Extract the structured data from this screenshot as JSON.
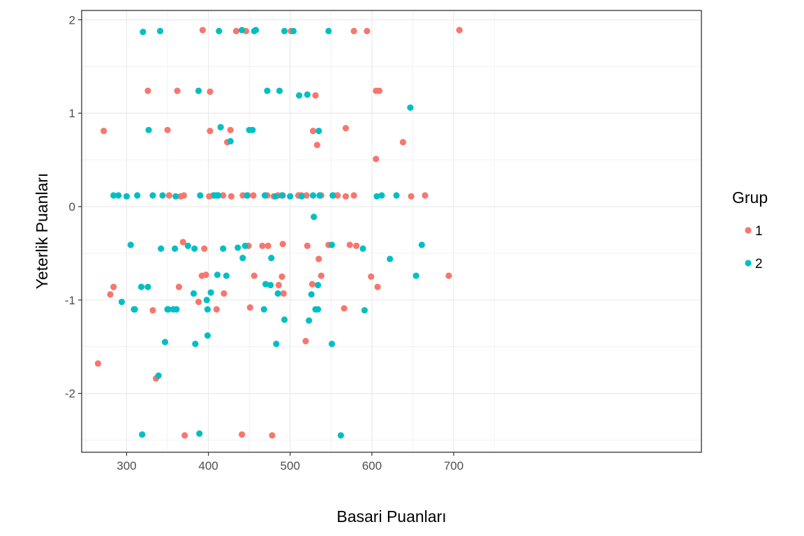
{
  "chart_data": {
    "type": "scatter",
    "title": "",
    "xlabel": "Basari Puanları",
    "ylabel": "Yeterlik Puanları",
    "xlim": [
      245,
      1003
    ],
    "ylim": [
      -2.63,
      2.1
    ],
    "xticks": [
      300,
      400,
      500,
      600,
      700
    ],
    "yticks": [
      -2,
      -1,
      0,
      1,
      2
    ],
    "xtick_labels": [
      "300",
      "400",
      "500",
      "600",
      "700"
    ],
    "ytick_labels": [
      "-2",
      "-1",
      "0",
      "1",
      "2"
    ],
    "grid": true,
    "legend": {
      "title": "Grup",
      "position": "right"
    },
    "series": [
      {
        "name": "1",
        "color": "#F8766D",
        "points": [
          [
            265,
            -1.68
          ],
          [
            272,
            0.81
          ],
          [
            280,
            -0.94
          ],
          [
            284,
            -0.86
          ],
          [
            326,
            1.24
          ],
          [
            332,
            -1.11
          ],
          [
            336,
            -1.84
          ],
          [
            350,
            0.82
          ],
          [
            352,
            0.12
          ],
          [
            362,
            1.24
          ],
          [
            364,
            -0.86
          ],
          [
            366,
            0.11
          ],
          [
            369,
            -0.38
          ],
          [
            371,
            -2.45
          ],
          [
            370,
            0.12
          ],
          [
            388,
            -1.02
          ],
          [
            392,
            -0.74
          ],
          [
            393,
            1.89
          ],
          [
            395,
            -0.45
          ],
          [
            397,
            -0.73
          ],
          [
            401,
            0.11
          ],
          [
            402,
            0.81
          ],
          [
            402,
            1.23
          ],
          [
            406,
            0.12
          ],
          [
            410,
            -1.1
          ],
          [
            418,
            0.12
          ],
          [
            419,
            -0.93
          ],
          [
            423,
            0.69
          ],
          [
            427,
            0.82
          ],
          [
            428,
            0.11
          ],
          [
            434,
            1.88
          ],
          [
            441,
            -2.44
          ],
          [
            442,
            0.12
          ],
          [
            446,
            1.88
          ],
          [
            448,
            0.12
          ],
          [
            449,
            -0.42
          ],
          [
            451,
            -1.08
          ],
          [
            455,
            0.12
          ],
          [
            456,
            -0.74
          ],
          [
            466,
            -0.42
          ],
          [
            472,
            0.12
          ],
          [
            473,
            -0.42
          ],
          [
            478,
            -2.45
          ],
          [
            480,
            0.11
          ],
          [
            485,
            0.12
          ],
          [
            486,
            -0.84
          ],
          [
            490,
            -0.75
          ],
          [
            491,
            0.12
          ],
          [
            491,
            -0.4
          ],
          [
            492,
            -0.93
          ],
          [
            501,
            1.88
          ],
          [
            510,
            0.12
          ],
          [
            512,
            0.12
          ],
          [
            514,
            0.12
          ],
          [
            519,
            -1.44
          ],
          [
            520,
            0.12
          ],
          [
            521,
            -0.42
          ],
          [
            527,
            -0.83
          ],
          [
            528,
            0.81
          ],
          [
            531,
            1.19
          ],
          [
            533,
            0.66
          ],
          [
            535,
            -0.56
          ],
          [
            538,
            0.12
          ],
          [
            538,
            -0.74
          ],
          [
            547,
            -0.41
          ],
          [
            553,
            0.12
          ],
          [
            558,
            0.12
          ],
          [
            566,
            -1.09
          ],
          [
            568,
            0.84
          ],
          [
            568,
            0.11
          ],
          [
            573,
            -0.41
          ],
          [
            578,
            1.88
          ],
          [
            578,
            0.12
          ],
          [
            581,
            -0.42
          ],
          [
            594,
            1.88
          ],
          [
            599,
            -0.75
          ],
          [
            605,
            0.51
          ],
          [
            605,
            1.24
          ],
          [
            607,
            -0.86
          ],
          [
            609,
            1.24
          ],
          [
            638,
            0.69
          ],
          [
            648,
            0.11
          ],
          [
            665,
            0.12
          ],
          [
            694,
            -0.74
          ],
          [
            707,
            1.89
          ]
        ]
      },
      {
        "name": "2",
        "color": "#00BFC4",
        "points": [
          [
            290,
            0.12
          ],
          [
            294,
            -1.02
          ],
          [
            300,
            0.11
          ],
          [
            305,
            -0.41
          ],
          [
            310,
            -1.1
          ],
          [
            313,
            0.12
          ],
          [
            318,
            -0.86
          ],
          [
            319,
            -2.44
          ],
          [
            320,
            1.87
          ],
          [
            326,
            -0.86
          ],
          [
            327,
            0.82
          ],
          [
            332,
            0.12
          ],
          [
            339,
            -1.81
          ],
          [
            341,
            1.88
          ],
          [
            342,
            -0.45
          ],
          [
            344,
            0.12
          ],
          [
            347,
            -1.45
          ],
          [
            350,
            -1.1
          ],
          [
            357,
            -1.1
          ],
          [
            359,
            -0.45
          ],
          [
            360,
            0.11
          ],
          [
            361,
            -1.1
          ],
          [
            375,
            -0.42
          ],
          [
            382,
            -0.93
          ],
          [
            383,
            -0.45
          ],
          [
            384,
            -1.47
          ],
          [
            388,
            1.24
          ],
          [
            389,
            -2.43
          ],
          [
            390,
            0.12
          ],
          [
            398,
            -1.0
          ],
          [
            399,
            -1.1
          ],
          [
            399,
            -1.38
          ],
          [
            403,
            -0.92
          ],
          [
            407,
            0.12
          ],
          [
            410,
            0.12
          ],
          [
            411,
            -0.73
          ],
          [
            412,
            0.12
          ],
          [
            413,
            1.88
          ],
          [
            415,
            0.85
          ],
          [
            418,
            -0.45
          ],
          [
            422,
            -0.74
          ],
          [
            427,
            0.7
          ],
          [
            436,
            -0.44
          ],
          [
            441,
            1.89
          ],
          [
            442,
            -0.55
          ],
          [
            445,
            -0.42
          ],
          [
            447,
            0.12
          ],
          [
            450,
            0.82
          ],
          [
            454,
            0.82
          ],
          [
            456,
            1.88
          ],
          [
            458,
            1.89
          ],
          [
            468,
            -1.1
          ],
          [
            469,
            0.12
          ],
          [
            470,
            -0.83
          ],
          [
            472,
            1.24
          ],
          [
            476,
            -0.84
          ],
          [
            477,
            -0.55
          ],
          [
            482,
            0.11
          ],
          [
            483,
            -1.47
          ],
          [
            485,
            -0.93
          ],
          [
            487,
            1.24
          ],
          [
            490,
            0.12
          ],
          [
            493,
            -1.21
          ],
          [
            493,
            1.88
          ],
          [
            500,
            0.11
          ],
          [
            504,
            1.88
          ],
          [
            511,
            1.19
          ],
          [
            514,
            0.11
          ],
          [
            521,
            1.2
          ],
          [
            523,
            -1.22
          ],
          [
            526,
            -0.94
          ],
          [
            528,
            0.12
          ],
          [
            529,
            -0.11
          ],
          [
            531,
            -1.1
          ],
          [
            534,
            -1.1
          ],
          [
            534,
            -0.84
          ],
          [
            535,
            0.81
          ],
          [
            536,
            0.12
          ],
          [
            547,
            1.88
          ],
          [
            551,
            -1.47
          ],
          [
            552,
            0.12
          ],
          [
            562,
            -2.45
          ],
          [
            589,
            -0.45
          ],
          [
            591,
            -1.11
          ],
          [
            606,
            0.11
          ],
          [
            612,
            0.12
          ],
          [
            622,
            -0.56
          ],
          [
            630,
            0.12
          ],
          [
            647,
            1.06
          ],
          [
            654,
            -0.74
          ],
          [
            661,
            -0.41
          ],
          [
            551,
            -0.41
          ],
          [
            309,
            -1.1
          ],
          [
            351,
            -1.1
          ],
          [
            284,
            0.12
          ]
        ]
      }
    ]
  }
}
